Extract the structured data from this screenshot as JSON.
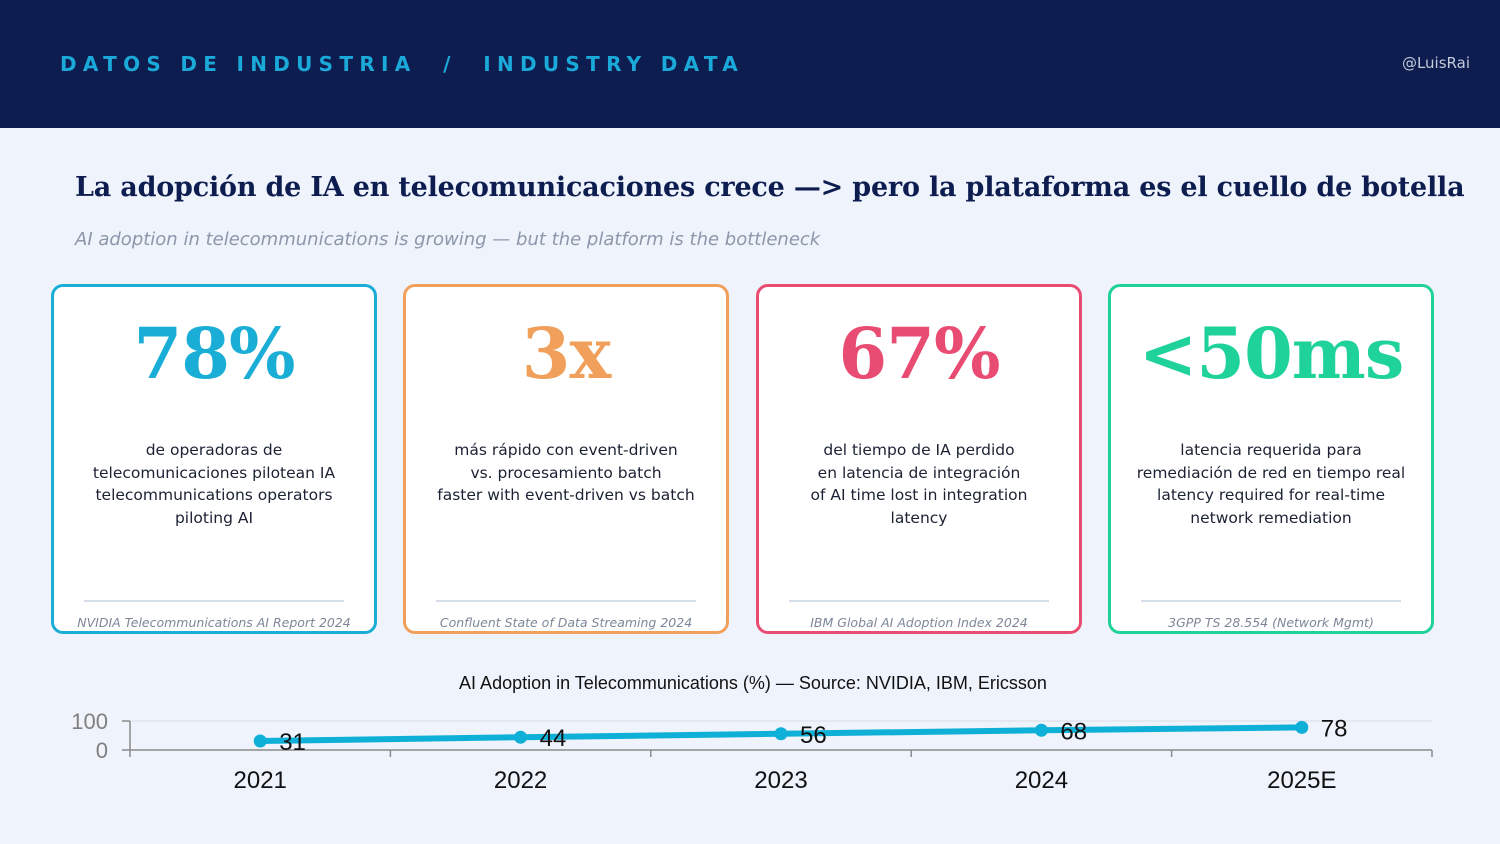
{
  "header": {
    "section_label": "DATOS DE INDUSTRIA  /  INDUSTRY DATA",
    "handle": "@LuisRai"
  },
  "headline": "La adopción de IA en telecomunicaciones crece —> pero la plataforma es el cuello de botella",
  "subheadline": "AI adoption in telecommunications is growing — but the platform is the bottleneck",
  "cards": [
    {
      "stat": "78%",
      "color": "#1aaed6",
      "lines": [
        "de operadoras de",
        "telecomunicaciones pilotean IA",
        "telecommunications operators",
        "piloting AI"
      ],
      "source": "NVIDIA Telecommunications AI Report 2024"
    },
    {
      "stat": "3x",
      "color": "#f0a05a",
      "lines": [
        "más rápido con event-driven",
        "vs. procesamiento batch",
        "faster with event-driven vs batch"
      ],
      "source": "Confluent State of Data Streaming 2024"
    },
    {
      "stat": "67%",
      "color": "#e94c72",
      "lines": [
        "del tiempo de IA perdido",
        "en latencia de integración",
        "of AI time lost in integration",
        "latency"
      ],
      "source": "IBM Global AI Adoption Index 2024"
    },
    {
      "stat": "<50ms",
      "color": "#1fd29a",
      "lines": [
        "latencia requerida para",
        "remediación de red en tiempo real",
        "latency required for real-time",
        "network remediation"
      ],
      "source": "3GPP TS 28.554 (Network Mgmt)"
    }
  ],
  "chart_data": {
    "type": "line",
    "title": "AI Adoption in Telecommunications (%) — Source: NVIDIA, IBM, Ericsson",
    "x": [
      "2021",
      "2022",
      "2023",
      "2024",
      "2025E"
    ],
    "series": [
      {
        "values": [
          31,
          44,
          56,
          68,
          78
        ],
        "color": "#0fb0d8"
      }
    ],
    "yticks": [
      0,
      100
    ],
    "ylim": [
      0,
      100
    ],
    "grid": true,
    "data_labels": true
  }
}
